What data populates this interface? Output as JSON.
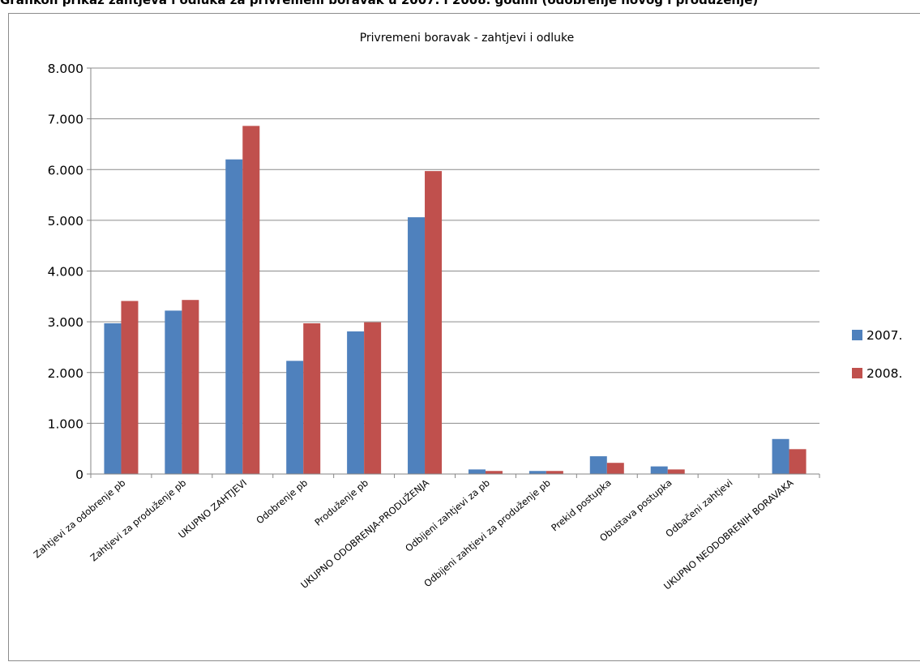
{
  "caption": "Grafikon prikaz zahtjeva i odluka za privremeni boravak u 2007. i 2008. godini (odobrenje novog i produženje)",
  "chart_data": {
    "type": "bar",
    "title": "Privremeni boravak - zahtjevi i odluke",
    "xlabel": "",
    "ylabel": "",
    "ylim": [
      0,
      8000
    ],
    "yticks": [
      0,
      1000,
      2000,
      3000,
      4000,
      5000,
      6000,
      7000,
      8000
    ],
    "ytick_labels": [
      "0",
      "1.000",
      "2.000",
      "3.000",
      "4.000",
      "5.000",
      "6.000",
      "7.000",
      "8.000"
    ],
    "grid": true,
    "legend_position": "right",
    "categories": [
      "Zahtjevi za odobrenje pb",
      "Zahtjevi za produženje pb",
      "UKUPNO ZAHTJEVI",
      "Odobrenje pb",
      "Produženje pb",
      "UKUPNO ODOBRENJA-PRODUŽENJA",
      "Odbijeni zahtjevi za pb",
      "Odbijeni zahtjevi za produženje pb",
      "Prekid postupka",
      "Obustava postupka",
      "Odbačeni zahtjevi",
      "UKUPNO NEODOBRENIH BORAVAKA"
    ],
    "series": [
      {
        "name": "2007.",
        "color": "#4f81bd",
        "values": [
          2970,
          3220,
          6200,
          2230,
          2810,
          5060,
          90,
          60,
          350,
          150,
          5,
          690
        ]
      },
      {
        "name": "2008.",
        "color": "#c0504d",
        "values": [
          3410,
          3430,
          6860,
          2970,
          2990,
          5970,
          60,
          60,
          220,
          90,
          5,
          490
        ]
      }
    ]
  }
}
